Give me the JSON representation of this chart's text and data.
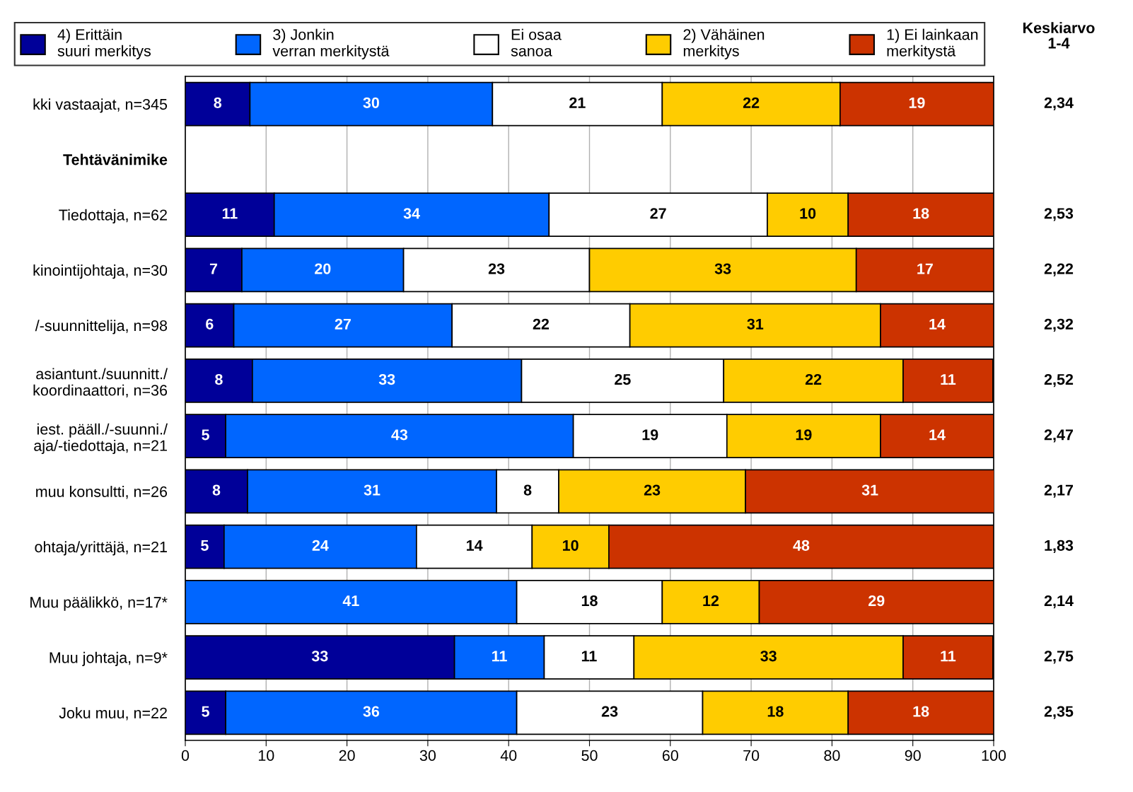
{
  "chart_data": {
    "type": "bar",
    "orientation": "horizontal",
    "stacked": true,
    "categories": [
      "kki vastaajat, n=345",
      "Tehtävänimike",
      "Tiedottaja, n=62",
      "kinointijohtaja, n=30",
      "/-suunnittelija, n=98",
      "asiantunt./suunnitt./\nkoordinaattori, n=36",
      "iest. pääll./-suunni./\naja/-tiedottaja, n=21",
      "muu konsultti, n=26",
      "ohtaja/yrittäjä, n=21",
      "Muu päälikkö, n=17*",
      "Muu johtaja, n=9*",
      "Joku muu, n=22"
    ],
    "series": [
      {
        "name": "4) Erittäin\nsuuri merkitys",
        "color": "#000099",
        "values": [
          8,
          null,
          11,
          7,
          6,
          8.3,
          5,
          7.7,
          4.8,
          0,
          33.3,
          5
        ],
        "value_labels": [
          "8",
          null,
          "11",
          "7",
          "6",
          "8",
          "5",
          "8",
          "5",
          null,
          "33",
          "5"
        ]
      },
      {
        "name": "3) Jonkin\nverran merkitystä",
        "color": "#0066ff",
        "values": [
          30,
          null,
          34,
          20,
          27,
          33.3,
          43,
          30.8,
          23.8,
          41,
          11.1,
          36
        ],
        "value_labels": [
          "30",
          null,
          "34",
          "20",
          "27",
          "33",
          "43",
          "31",
          "24",
          "41",
          "11",
          "36"
        ]
      },
      {
        "name": "Ei osaa\nsanoa",
        "color": "#ffffff",
        "values": [
          21,
          null,
          27,
          23,
          22,
          25,
          19,
          7.7,
          14.3,
          18,
          11.1,
          23
        ],
        "value_labels": [
          "21",
          null,
          "27",
          "23",
          "22",
          "25",
          "19",
          "8",
          "14",
          "18",
          "11",
          "23"
        ]
      },
      {
        "name": "2) Vähäinen\nmerkitys",
        "color": "#ffcc00",
        "values": [
          22,
          null,
          10,
          33,
          31,
          22.2,
          19,
          23.1,
          9.5,
          12,
          33.3,
          18
        ],
        "value_labels": [
          "22",
          null,
          "10",
          "33",
          "31",
          "22",
          "19",
          "23",
          "10",
          "12",
          "33",
          "18"
        ]
      },
      {
        "name": "1) Ei lainkaan\nmerkitystä",
        "color": "#cc3300",
        "values": [
          19,
          null,
          18,
          17,
          14,
          11.1,
          14,
          30.8,
          47.6,
          29,
          11.1,
          18
        ],
        "value_labels": [
          "19",
          null,
          "18",
          "17",
          "14",
          "11",
          "14",
          "31",
          "48",
          "29",
          "11",
          "18"
        ]
      }
    ],
    "xlim": [
      0,
      100
    ],
    "xticks": [
      0,
      10,
      20,
      30,
      40,
      50,
      60,
      70,
      80,
      90,
      100
    ],
    "grid": "x",
    "legend": "top",
    "annotations": [
      "Keskiarvo\n1-4",
      "2,34",
      "2,53",
      "2,22",
      "2,32",
      "2,52",
      "2,47",
      "2,17",
      "1,83",
      "2,14",
      "2,75",
      "2,35"
    ]
  }
}
